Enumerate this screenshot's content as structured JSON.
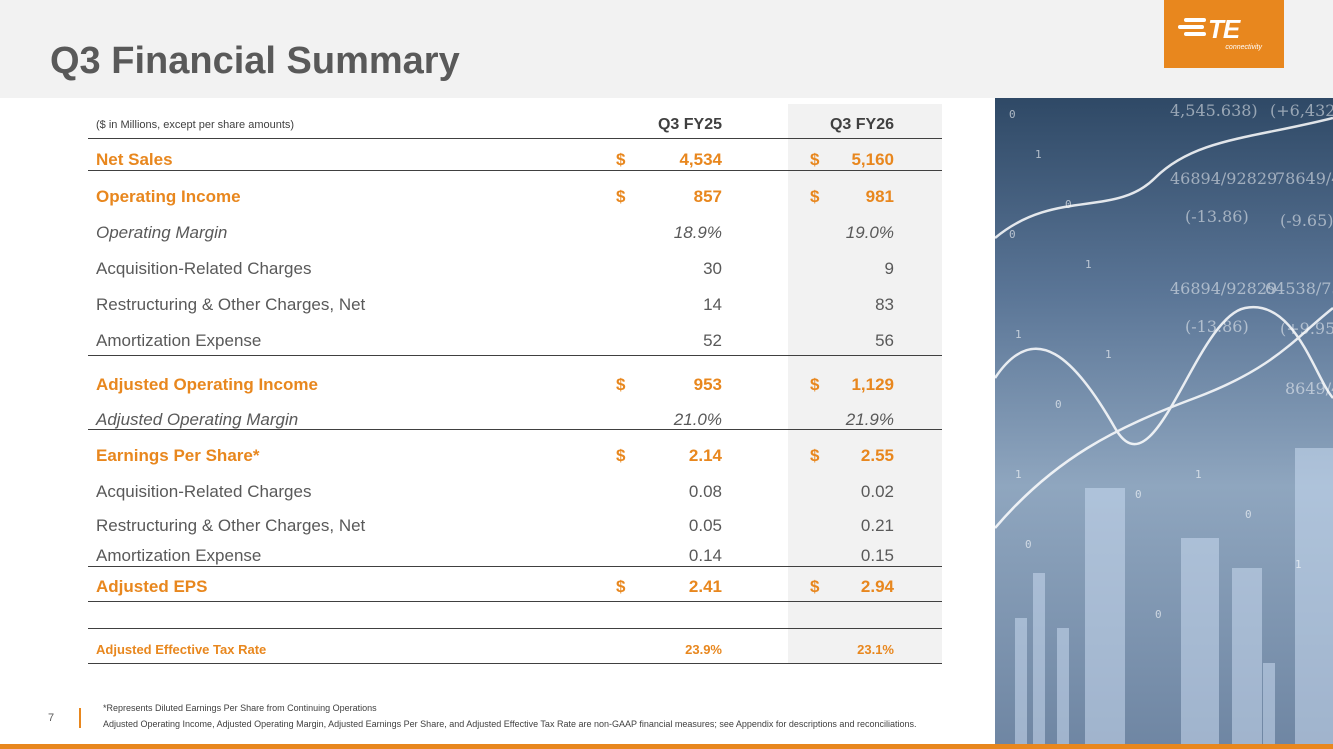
{
  "header": {
    "title": "Q3 Financial Summary"
  },
  "logo": {
    "mark": "TE",
    "sub": "connectivity"
  },
  "table": {
    "unit_note": "($ in Millions, except per share amounts)",
    "col1": "Q3 FY25",
    "col2": "Q3 FY26",
    "rows": [
      {
        "label": "Net Sales",
        "d1": "$",
        "v1": "4,534",
        "d2": "$",
        "v2": "5,160"
      },
      {
        "label": "Operating Income",
        "d1": "$",
        "v1": "857",
        "d2": "$",
        "v2": "981"
      },
      {
        "label": "Operating Margin",
        "v1": "18.9%",
        "v2": "19.0%"
      },
      {
        "label": "Acquisition-Related Charges",
        "v1": "30",
        "v2": "9"
      },
      {
        "label": "Restructuring & Other Charges, Net",
        "v1": "14",
        "v2": "83"
      },
      {
        "label": "Amortization Expense",
        "v1": "52",
        "v2": "56"
      },
      {
        "label": "Adjusted Operating Income",
        "d1": "$",
        "v1": "953",
        "d2": "$",
        "v2": "1,129"
      },
      {
        "label": "Adjusted Operating Margin",
        "v1": "21.0%",
        "v2": "21.9%"
      },
      {
        "label": "Earnings Per Share*",
        "d1": "$",
        "v1": "2.14",
        "d2": "$",
        "v2": "2.55"
      },
      {
        "label": "Acquisition-Related Charges",
        "v1": "0.08",
        "v2": "0.02"
      },
      {
        "label": "Restructuring & Other Charges, Net",
        "v1": "0.05",
        "v2": "0.21"
      },
      {
        "label": "Amortization Expense",
        "v1": "0.14",
        "v2": "0.15"
      },
      {
        "label": "Adjusted EPS",
        "d1": "$",
        "v1": "2.41",
        "d2": "$",
        "v2": "2.94"
      },
      {
        "label": "Adjusted Effective Tax Rate",
        "v1": "23.9%",
        "v2": "23.1%"
      }
    ]
  },
  "footer": {
    "page": "7",
    "note1": "*Represents Diluted Earnings Per Share from Continuing Operations",
    "note2": "Adjusted Operating Income, Adjusted Operating Margin, Adjusted Earnings Per Share, and Adjusted Effective Tax Rate are non-GAAP financial measures; see Appendix for descriptions and reconciliations."
  },
  "colors": {
    "accent": "#e8871e",
    "text": "#595959",
    "header_bg": "#f2f2f2"
  },
  "photo": {
    "icon": "financial-data-image"
  }
}
